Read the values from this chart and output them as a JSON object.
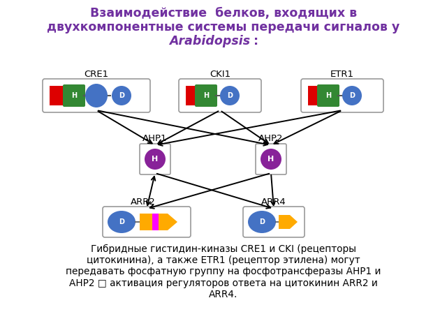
{
  "title_line1": "Взаимодействие  белков, входящих в",
  "title_line2": "двухкомпонентные системы передачи сигналов у",
  "title_line3": "Arabidopsis",
  "title_line3_suffix": ":",
  "title_color": "#7030a0",
  "bottom_text": "Гибридные гистидин-киназы CRE1 и CKI (рецепторы\nцитокинина), а также ETR1 (рецептор этилена) могут\nпередавать фосфатную группу на фосфотрансферазы AHP1 и\nAHP2 □ активация регуляторов ответа на цитокинин ARR2 и\nARR4.",
  "bg_color": "#ffffff",
  "receptor_labels": [
    "CRE1",
    "CKI1",
    "ETR1"
  ],
  "ahp_labels": [
    "AHP1",
    "AHP2"
  ],
  "arr_labels": [
    "ARR2",
    "ARR4"
  ],
  "red_color": "#dd0000",
  "green_color": "#006600",
  "green_rect_color": "#338833",
  "blue_ellipse_color": "#4472c4",
  "purple_color": "#882299",
  "gold_color": "#ffaa00",
  "magenta_color": "#ff00ff",
  "box_border": "#999999",
  "arrow_color": "#111111"
}
